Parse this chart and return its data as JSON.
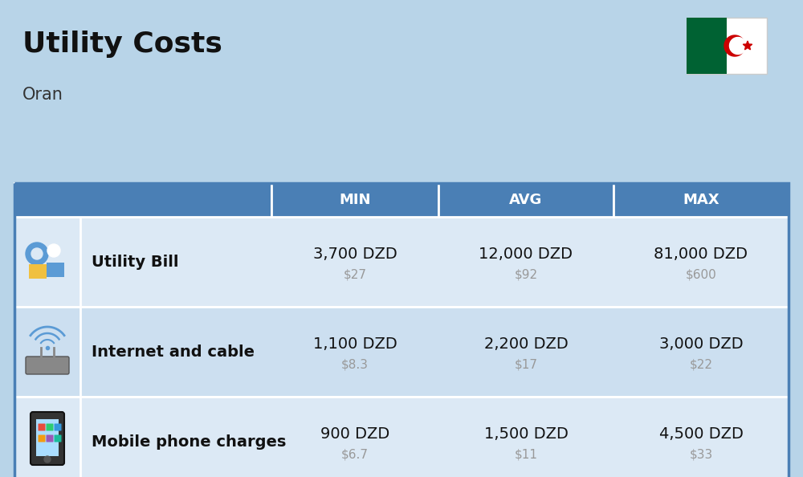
{
  "title": "Utility Costs",
  "subtitle": "Oran",
  "background_color": "#b8d4e8",
  "header_bg_color": "#4a7fb5",
  "header_text_color": "#ffffff",
  "row_bg_color_odd": "#dce9f5",
  "row_bg_color_even": "#ccdff0",
  "table_border_color": "#4a7fb5",
  "rows": [
    {
      "label": "Utility Bill",
      "min_dzd": "3,700 DZD",
      "min_usd": "$27",
      "avg_dzd": "12,000 DZD",
      "avg_usd": "$92",
      "max_dzd": "81,000 DZD",
      "max_usd": "$600",
      "icon": "utility"
    },
    {
      "label": "Internet and cable",
      "min_dzd": "1,100 DZD",
      "min_usd": "$8.3",
      "avg_dzd": "2,200 DZD",
      "avg_usd": "$17",
      "max_dzd": "3,000 DZD",
      "max_usd": "$22",
      "icon": "internet"
    },
    {
      "label": "Mobile phone charges",
      "min_dzd": "900 DZD",
      "min_usd": "$6.7",
      "avg_dzd": "1,500 DZD",
      "avg_usd": "$11",
      "max_dzd": "4,500 DZD",
      "max_usd": "$33",
      "icon": "mobile"
    }
  ],
  "title_fontsize": 26,
  "subtitle_fontsize": 15,
  "header_fontsize": 13,
  "cell_dzd_fontsize": 14,
  "label_fontsize": 14,
  "usd_fontsize": 11,
  "usd_color": "#999999",
  "flag_green": "#006233",
  "flag_white": "#ffffff",
  "flag_red": "#cc0000"
}
